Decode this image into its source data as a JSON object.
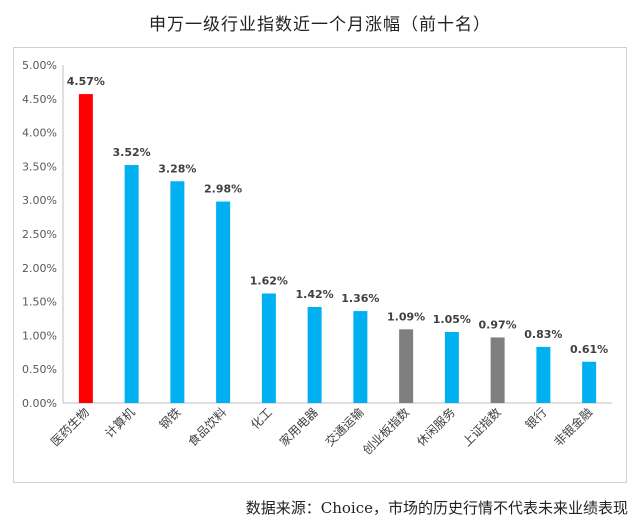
{
  "title": "申万一级行业指数近一个月涨幅（前十名）",
  "source": "数据来源：Choice，市场的历史行情不代表未来业绩表现",
  "chart_data": {
    "type": "bar",
    "title": "申万一级行业指数近一个月涨幅（前十名）",
    "categories": [
      "医药生物",
      "计算机",
      "钢铁",
      "食品饮料",
      "化工",
      "家用电器",
      "交通运输",
      "创业板指数",
      "休闲服务",
      "上证指数",
      "银行",
      "非银金融"
    ],
    "values": [
      4.57,
      3.52,
      3.28,
      2.98,
      1.62,
      1.42,
      1.36,
      1.09,
      1.05,
      0.97,
      0.83,
      0.61
    ],
    "value_labels": [
      "4.57%",
      "3.52%",
      "3.28%",
      "2.98%",
      "1.62%",
      "1.42%",
      "1.36%",
      "1.09%",
      "1.05%",
      "0.97%",
      "0.83%",
      "0.61%"
    ],
    "colors": [
      "#ff0000",
      "#00b0f0",
      "#00b0f0",
      "#00b0f0",
      "#00b0f0",
      "#00b0f0",
      "#00b0f0",
      "#7f7f7f",
      "#00b0f0",
      "#7f7f7f",
      "#00b0f0",
      "#00b0f0"
    ],
    "ylim": [
      0,
      5
    ],
    "yticks": [
      "0.00%",
      "0.50%",
      "1.00%",
      "1.50%",
      "2.00%",
      "2.50%",
      "3.00%",
      "3.50%",
      "4.00%",
      "4.50%",
      "5.00%"
    ],
    "xlabel": "",
    "ylabel": "",
    "grid": false,
    "legend": "none"
  }
}
